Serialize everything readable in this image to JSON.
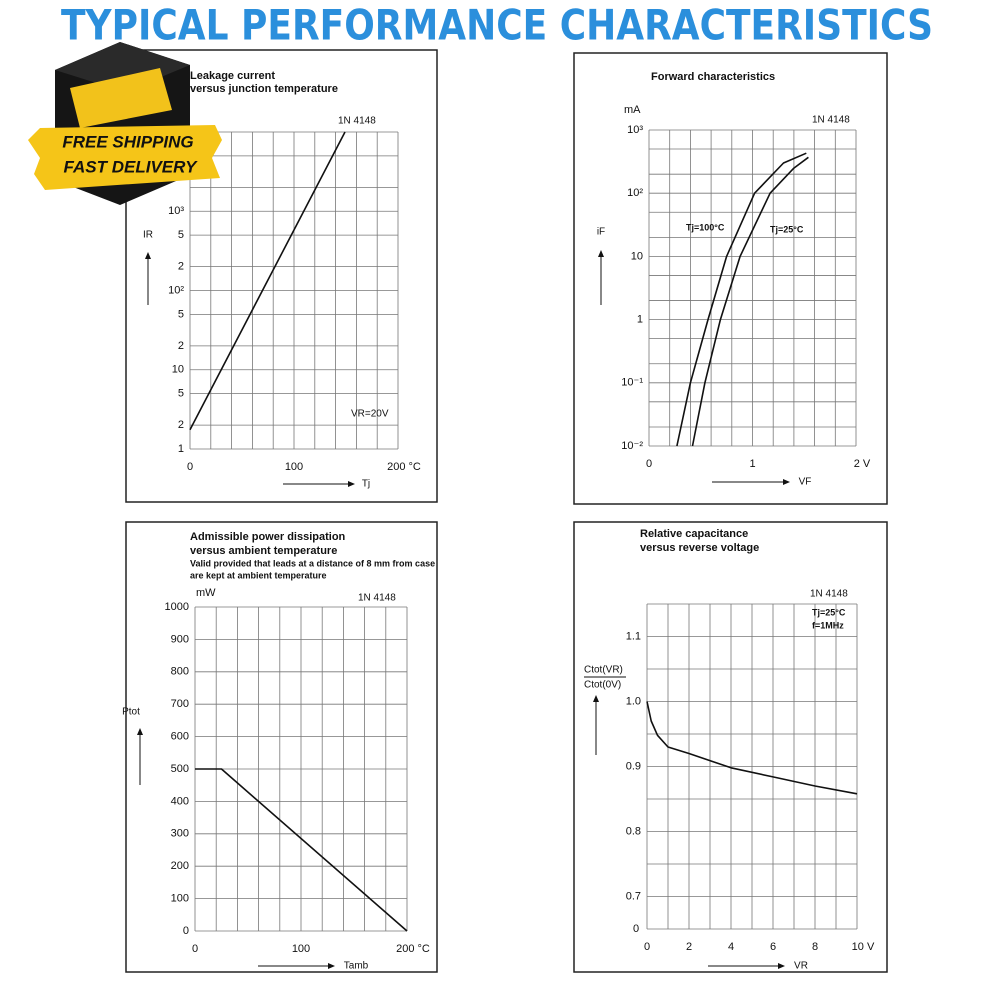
{
  "title": "TYPICAL PERFORMANCE CHARACTERISTICS",
  "badge": [
    "FREE SHIPPING",
    "FAST DELIVERY"
  ],
  "chart_data": [
    {
      "type": "line",
      "title": [
        "Leakage current",
        "versus junction temperature"
      ],
      "annotations": [
        "1N 4148",
        "VR=20V"
      ],
      "ylabel": "IR",
      "xlabel": "Tj",
      "xlim": [
        0,
        200
      ],
      "xticks": [
        0,
        100,
        {
          "value": 200,
          "label": "200 °C"
        }
      ],
      "xgrid": [
        0,
        20,
        40,
        60,
        80,
        100,
        120,
        140,
        160,
        180,
        200
      ],
      "ylim": [
        1,
        10000
      ],
      "ylog": true,
      "yticks": [
        1,
        2,
        5,
        10,
        {
          "value": 20,
          "label": "2"
        },
        {
          "value": 50,
          "label": "5"
        },
        {
          "value": 100,
          "label": "10²"
        },
        {
          "value": 200,
          "label": "2"
        },
        {
          "value": 500,
          "label": "5"
        },
        {
          "value": 1000,
          "label": "10³"
        }
      ],
      "ygrid": [
        1,
        2,
        5,
        10,
        20,
        50,
        100,
        200,
        500,
        1000,
        2000,
        5000,
        10000
      ],
      "series": [
        {
          "color": "#111111",
          "x": [
            0,
            149
          ],
          "values": [
            1.75,
            10000
          ]
        }
      ]
    },
    {
      "type": "line",
      "title": [
        "Forward characteristics"
      ],
      "unit": "mA",
      "annotations": [
        "1N 4148"
      ],
      "ylabel": "iF",
      "xlabel": "VF",
      "xlim": [
        0,
        2
      ],
      "xticks": [
        0,
        1,
        {
          "value": 2,
          "label": "2 V"
        }
      ],
      "xgrid": [
        0,
        0.2,
        0.4,
        0.6,
        0.8,
        1,
        1.2,
        1.4,
        1.6,
        1.8,
        2
      ],
      "ylim": [
        0.01,
        1000
      ],
      "ylog": true,
      "yticks": [
        {
          "value": 1000,
          "label": "10³"
        },
        {
          "value": 100,
          "label": "10²"
        },
        10,
        1,
        {
          "value": 0.1,
          "label": "10⁻¹"
        },
        {
          "value": 0.01,
          "label": "10⁻²"
        }
      ],
      "ygrid": [
        0.01,
        0.02,
        0.05,
        0.1,
        0.2,
        0.5,
        1,
        2,
        5,
        10,
        20,
        50,
        100,
        200,
        500,
        1000
      ],
      "series": [
        {
          "name": "Tj=100°C",
          "color": "#111111",
          "x": [
            0.27,
            0.4,
            0.57,
            0.75,
            1.02,
            1.3,
            1.52
          ],
          "values": [
            0.01,
            0.1,
            1,
            10,
            100,
            300,
            430
          ]
        },
        {
          "name": "Tj=25°C",
          "color": "#111111",
          "x": [
            0.42,
            0.54,
            0.69,
            0.88,
            1.17,
            1.4,
            1.54
          ],
          "values": [
            0.01,
            0.1,
            1,
            10,
            100,
            250,
            370
          ]
        }
      ]
    },
    {
      "type": "line",
      "title": [
        "Admissible power dissipation",
        "versus ambient temperature"
      ],
      "note": [
        "Valid provided that leads at a distance of 8 mm from case",
        "are kept at ambient temperature"
      ],
      "unit": "mW",
      "annotations": [
        "1N 4148"
      ],
      "ylabel": "Ptot",
      "xlabel": "Tamb",
      "xlim": [
        0,
        200
      ],
      "xticks": [
        0,
        100,
        {
          "value": 200,
          "label": "200 °C"
        }
      ],
      "xgrid": [
        0,
        20,
        40,
        60,
        80,
        100,
        120,
        140,
        160,
        180,
        200
      ],
      "ylim": [
        0,
        1000
      ],
      "yticks": [
        0,
        100,
        200,
        300,
        400,
        500,
        600,
        700,
        800,
        900,
        1000
      ],
      "series": [
        {
          "color": "#111111",
          "x": [
            0,
            25,
            200
          ],
          "values": [
            500,
            500,
            0
          ]
        }
      ]
    },
    {
      "type": "line",
      "title": [
        "Relative capacitance",
        "versus reverse voltage"
      ],
      "annotations": [
        "1N 4148",
        "Tj=25°C",
        "f=1MHz"
      ],
      "ylabel": [
        "Ctot(VR)",
        "Ctot(0V)"
      ],
      "xlabel": "VR",
      "xlim": [
        0,
        10
      ],
      "xticks": [
        0,
        2,
        4,
        6,
        8,
        {
          "value": 10,
          "label": "10 V"
        }
      ],
      "xgrid": [
        0,
        1,
        2,
        3,
        4,
        5,
        6,
        7,
        8,
        9,
        10
      ],
      "ylim": [
        0.65,
        1.15
      ],
      "yticks": [
        0.7,
        0.8,
        0.9,
        {
          "value": 1,
          "label": "1.0"
        },
        1.1
      ],
      "ygrid": [
        0.65,
        0.7,
        0.75,
        0.8,
        0.85,
        0.9,
        0.95,
        1,
        1.05,
        1.1,
        1.15
      ],
      "y_origin_label": "0",
      "series": [
        {
          "color": "#111111",
          "x": [
            0,
            0.2,
            0.5,
            1,
            2,
            4,
            6,
            8,
            10
          ],
          "values": [
            1,
            0.97,
            0.948,
            0.93,
            0.92,
            0.898,
            0.884,
            0.87,
            0.858
          ]
        }
      ]
    }
  ]
}
